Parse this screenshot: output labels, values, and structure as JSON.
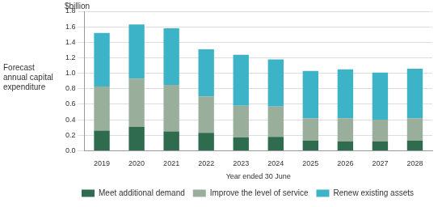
{
  "chart_data": {
    "type": "bar",
    "stacked": true,
    "y_label": "Forecast annual capital expenditure",
    "x_label": "Year ended 30 June",
    "annotations": [
      "$billion"
    ],
    "categories": [
      "2019",
      "2020",
      "2021",
      "2022",
      "2023",
      "2024",
      "2025",
      "2026",
      "2027",
      "2028"
    ],
    "series": [
      {
        "name": "Meet additional demand",
        "color": "#2e6b4f",
        "values": [
          0.26,
          0.31,
          0.25,
          0.23,
          0.17,
          0.18,
          0.13,
          0.12,
          0.12,
          0.13
        ]
      },
      {
        "name": "Improve the level of service",
        "color": "#9aaf9b",
        "values": [
          0.57,
          0.62,
          0.6,
          0.47,
          0.41,
          0.39,
          0.29,
          0.3,
          0.28,
          0.29
        ]
      },
      {
        "name": "Renew existing assets",
        "color": "#3db3c8",
        "values": [
          0.69,
          0.7,
          0.73,
          0.61,
          0.66,
          0.61,
          0.61,
          0.63,
          0.61,
          0.64
        ]
      }
    ],
    "ylim": [
      0,
      1.8
    ],
    "yticks": [
      {
        "value": 0,
        "label": "0.0"
      },
      0.2,
      0.4,
      0.6,
      0.8,
      {
        "value": 1,
        "label": "1.0"
      },
      1.2,
      1.4,
      1.6,
      1.8
    ],
    "grid": true,
    "legend": "bottom"
  }
}
